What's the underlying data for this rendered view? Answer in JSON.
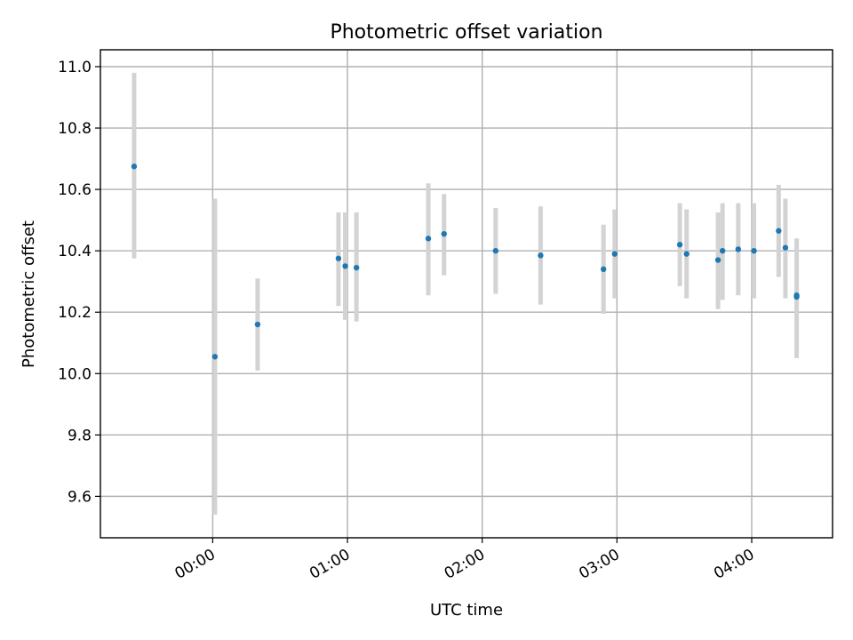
{
  "chart_data": {
    "type": "scatter",
    "title": "Photometric offset variation",
    "xlabel": "UTC time",
    "ylabel": "Photometric offset",
    "xlim": [
      "23:10",
      "04:36"
    ],
    "ylim": [
      9.465,
      11.055
    ],
    "grid": true,
    "x_ticks": [
      "00:00",
      "01:00",
      "02:00",
      "03:00",
      "04:00"
    ],
    "y_ticks": [
      "9.6",
      "9.8",
      "10.0",
      "10.2",
      "10.4",
      "10.6",
      "10.8",
      "11.0"
    ],
    "error_bar_color": "#d3d3d3",
    "point_color": "#1f77b4",
    "points": [
      {
        "t": "23:25",
        "y": 10.675,
        "lo": 10.375,
        "hi": 10.98
      },
      {
        "t": "00:01",
        "y": 10.055,
        "lo": 9.54,
        "hi": 10.57
      },
      {
        "t": "00:20",
        "y": 10.16,
        "lo": 10.01,
        "hi": 10.31
      },
      {
        "t": "00:56",
        "y": 10.375,
        "lo": 10.22,
        "hi": 10.525
      },
      {
        "t": "00:59",
        "y": 10.35,
        "lo": 10.175,
        "hi": 10.525
      },
      {
        "t": "01:04",
        "y": 10.345,
        "lo": 10.17,
        "hi": 10.525
      },
      {
        "t": "01:36",
        "y": 10.44,
        "lo": 10.255,
        "hi": 10.62
      },
      {
        "t": "01:43",
        "y": 10.455,
        "lo": 10.32,
        "hi": 10.585
      },
      {
        "t": "02:06",
        "y": 10.4,
        "lo": 10.26,
        "hi": 10.54
      },
      {
        "t": "02:26",
        "y": 10.385,
        "lo": 10.225,
        "hi": 10.545
      },
      {
        "t": "02:54",
        "y": 10.34,
        "lo": 10.195,
        "hi": 10.485
      },
      {
        "t": "02:59",
        "y": 10.39,
        "lo": 10.245,
        "hi": 10.535
      },
      {
        "t": "03:28",
        "y": 10.42,
        "lo": 10.285,
        "hi": 10.555
      },
      {
        "t": "03:31",
        "y": 10.39,
        "lo": 10.245,
        "hi": 10.535
      },
      {
        "t": "03:45",
        "y": 10.37,
        "lo": 10.21,
        "hi": 10.525
      },
      {
        "t": "03:47",
        "y": 10.4,
        "lo": 10.24,
        "hi": 10.555
      },
      {
        "t": "03:54",
        "y": 10.405,
        "lo": 10.255,
        "hi": 10.555
      },
      {
        "t": "04:01",
        "y": 10.4,
        "lo": 10.245,
        "hi": 10.555
      },
      {
        "t": "04:12",
        "y": 10.465,
        "lo": 10.315,
        "hi": 10.615
      },
      {
        "t": "04:15",
        "y": 10.41,
        "lo": 10.245,
        "hi": 10.57
      },
      {
        "t": "04:20",
        "y": 10.255,
        "lo": 10.07,
        "hi": 10.44
      },
      {
        "t": "04:20",
        "y": 10.25,
        "lo": 10.05,
        "hi": 10.44
      }
    ]
  }
}
